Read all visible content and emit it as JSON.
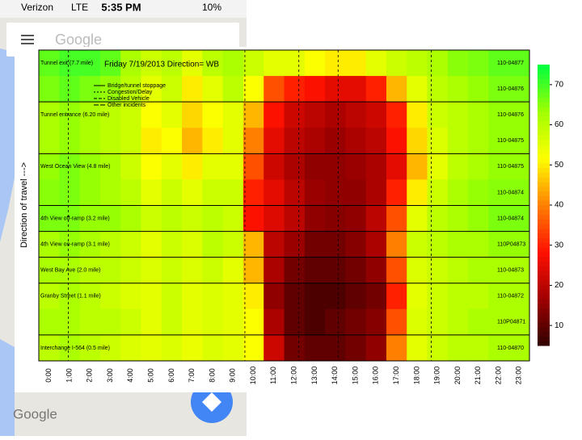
{
  "screen": {
    "carrier": "Verizon",
    "network": "LTE",
    "time": "5:35 PM",
    "battery": "10%",
    "search_placeholder": "Google",
    "logo": "Google"
  },
  "chart_data": {
    "type": "heatmap",
    "title": "Friday 7/19/2013  Direction= WB",
    "ylabel": "Direction of travel --->",
    "legend": [
      "Bridge/tunnel stoppage",
      "Congestion/Delay",
      "Disabled Vehicle",
      "Other incidents"
    ],
    "categories": [
      "0:00",
      "1:00",
      "2:00",
      "3:00",
      "4:00",
      "5:00",
      "6:00",
      "7:00",
      "8:00",
      "9:00",
      "10:00",
      "11:00",
      "12:00",
      "13:00",
      "14:00",
      "15:00",
      "16:00",
      "17:00",
      "18:00",
      "19:00",
      "20:00",
      "21:00",
      "22:00",
      "23:00"
    ],
    "y_categories": [
      "110-04877",
      "110-04876",
      "110-04876",
      "110-04875",
      "110-04875",
      "110-04874",
      "110-04874",
      "110P04873",
      "110-04873",
      "110-04872",
      "110P04871",
      "110-04870"
    ],
    "row_labels": [
      "Tunnel exit (7.7 mile)",
      null,
      "Tunnel entrance (6.20 mile)",
      null,
      "West Ocean View (4.8 mile)",
      null,
      "4th View off-ramp (3.2 mile)",
      "4th View on-ramp (3.1 mile)",
      "West Bay Ave (2.0 mile)",
      "Granby Street (1.1 mile)",
      null,
      "Interchange I-564 (0.5 mile)"
    ],
    "values": [
      [
        68,
        70,
        70,
        68,
        62,
        58,
        60,
        55,
        60,
        62,
        58,
        55,
        55,
        52,
        50,
        50,
        55,
        58,
        60,
        62,
        65,
        66,
        68,
        68
      ],
      [
        66,
        68,
        66,
        64,
        60,
        55,
        58,
        50,
        55,
        60,
        52,
        35,
        30,
        28,
        25,
        25,
        30,
        45,
        55,
        60,
        62,
        64,
        66,
        66
      ],
      [
        62,
        64,
        62,
        60,
        58,
        52,
        55,
        48,
        52,
        55,
        45,
        28,
        22,
        20,
        18,
        20,
        22,
        30,
        50,
        58,
        60,
        62,
        64,
        64
      ],
      [
        62,
        64,
        62,
        60,
        58,
        50,
        52,
        45,
        50,
        55,
        40,
        25,
        20,
        18,
        16,
        18,
        20,
        28,
        48,
        56,
        60,
        62,
        64,
        64
      ],
      [
        64,
        66,
        64,
        62,
        58,
        52,
        55,
        50,
        55,
        55,
        35,
        22,
        18,
        15,
        15,
        16,
        18,
        25,
        45,
        55,
        60,
        62,
        64,
        64
      ],
      [
        65,
        66,
        64,
        62,
        60,
        55,
        58,
        55,
        58,
        58,
        30,
        25,
        20,
        16,
        15,
        15,
        18,
        30,
        50,
        58,
        62,
        64,
        65,
        65
      ],
      [
        66,
        66,
        64,
        64,
        62,
        58,
        60,
        58,
        60,
        58,
        28,
        24,
        20,
        15,
        14,
        15,
        20,
        35,
        55,
        60,
        62,
        64,
        66,
        66
      ],
      [
        62,
        64,
        62,
        60,
        58,
        55,
        58,
        56,
        60,
        58,
        45,
        20,
        16,
        12,
        12,
        14,
        18,
        40,
        58,
        60,
        62,
        62,
        64,
        64
      ],
      [
        62,
        62,
        60,
        60,
        58,
        56,
        58,
        56,
        58,
        55,
        45,
        18,
        12,
        10,
        10,
        12,
        15,
        35,
        56,
        58,
        60,
        62,
        62,
        62
      ],
      [
        60,
        62,
        60,
        58,
        56,
        55,
        58,
        55,
        56,
        55,
        50,
        15,
        10,
        8,
        8,
        10,
        12,
        30,
        55,
        58,
        60,
        60,
        62,
        62
      ],
      [
        62,
        62,
        60,
        60,
        58,
        55,
        58,
        55,
        56,
        55,
        52,
        18,
        10,
        8,
        10,
        12,
        14,
        35,
        56,
        58,
        60,
        62,
        62,
        62
      ],
      [
        60,
        62,
        60,
        58,
        56,
        55,
        56,
        54,
        56,
        55,
        52,
        22,
        12,
        10,
        10,
        12,
        15,
        40,
        55,
        58,
        60,
        60,
        62,
        62
      ]
    ],
    "colorscale": [
      "#300000",
      "#a00000",
      "#ff1000",
      "#ff8000",
      "#ffff00",
      "#a0ff00",
      "#00ff40"
    ],
    "zlim": [
      5,
      75
    ],
    "zticks": [
      10,
      20,
      30,
      40,
      50,
      60,
      70
    ]
  }
}
